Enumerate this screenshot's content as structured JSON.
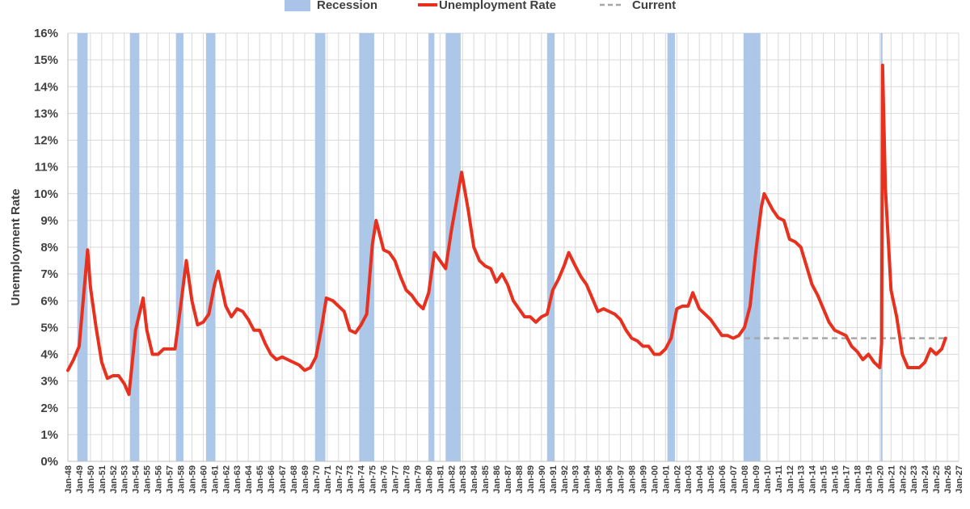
{
  "chart_data": {
    "type": "line",
    "title": "",
    "xlabel": "",
    "ylabel": "Unemployment Rate",
    "ylim": [
      0,
      16
    ],
    "y_ticks": [
      "0%",
      "1%",
      "2%",
      "3%",
      "4%",
      "5%",
      "6%",
      "7%",
      "8%",
      "9%",
      "10%",
      "11%",
      "12%",
      "13%",
      "14%",
      "15%",
      "16%"
    ],
    "x_ticks": [
      "Jan-48",
      "Jan-49",
      "Jan-50",
      "Jan-51",
      "Jan-52",
      "Jan-53",
      "Jan-54",
      "Jan-55",
      "Jan-56",
      "Jan-57",
      "Jan-58",
      "Jan-59",
      "Jan-60",
      "Jan-61",
      "Jan-62",
      "Jan-63",
      "Jan-64",
      "Jan-65",
      "Jan-66",
      "Jan-67",
      "Jan-68",
      "Jan-69",
      "Jan-70",
      "Jan-71",
      "Jan-72",
      "Jan-73",
      "Jan-74",
      "Jan-75",
      "Jan-76",
      "Jan-77",
      "Jan-78",
      "Jan-79",
      "Jan-80",
      "Jan-81",
      "Jan-82",
      "Jan-83",
      "Jan-84",
      "Jan-85",
      "Jan-86",
      "Jan-87",
      "Jan-88",
      "Jan-89",
      "Jan-90",
      "Jan-91",
      "Jan-92",
      "Jan-93",
      "Jan-94",
      "Jan-95",
      "Jan-96",
      "Jan-97",
      "Jan-98",
      "Jan-99",
      "Jan-00",
      "Jan-01",
      "Jan-02",
      "Jan-03",
      "Jan-04",
      "Jan-05",
      "Jan-06",
      "Jan-07",
      "Jan-08",
      "Jan-09",
      "Jan-10",
      "Jan-11",
      "Jan-12",
      "Jan-13",
      "Jan-14",
      "Jan-15",
      "Jan-16",
      "Jan-17",
      "Jan-18",
      "Jan-19",
      "Jan-20",
      "Jan-21",
      "Jan-22",
      "Jan-23",
      "Jan-24",
      "Jan-25",
      "Jan-26",
      "Jan-27"
    ],
    "grid": true,
    "legend": {
      "placement": "top",
      "entries": [
        {
          "label": "Recession",
          "symbol": "box",
          "color": "#a9c4e8"
        },
        {
          "label": "Unemployment Rate",
          "symbol": "line",
          "color": "#e8301e"
        },
        {
          "label": "Current",
          "symbol": "dashed-line",
          "color": "#a6a6a6"
        }
      ]
    },
    "recessions": [
      {
        "start": "Nov-48",
        "end": "Oct-49"
      },
      {
        "start": "Jul-53",
        "end": "May-54"
      },
      {
        "start": "Aug-57",
        "end": "Apr-58"
      },
      {
        "start": "Apr-60",
        "end": "Feb-61"
      },
      {
        "start": "Dec-69",
        "end": "Nov-70"
      },
      {
        "start": "Nov-73",
        "end": "Mar-75"
      },
      {
        "start": "Jan-80",
        "end": "Jul-80"
      },
      {
        "start": "Jul-81",
        "end": "Nov-82"
      },
      {
        "start": "Jul-90",
        "end": "Mar-91"
      },
      {
        "start": "Mar-01",
        "end": "Nov-01"
      },
      {
        "start": "Dec-07",
        "end": "Jun-09"
      },
      {
        "start": "Feb-20",
        "end": "Apr-20"
      }
    ],
    "current": {
      "value": 4.6,
      "start": "Jan-08",
      "end": "Nov-25",
      "color": "#a6a6a6"
    },
    "series": [
      {
        "name": "Unemployment Rate",
        "color": "#e8301e",
        "points": [
          [
            "Jan-48",
            3.4
          ],
          [
            "Jul-48",
            3.8
          ],
          [
            "Jan-49",
            4.3
          ],
          [
            "Jul-49",
            6.7
          ],
          [
            "Oct-49",
            7.9
          ],
          [
            "Jan-50",
            6.5
          ],
          [
            "Jul-50",
            5.0
          ],
          [
            "Jan-51",
            3.7
          ],
          [
            "Jul-51",
            3.1
          ],
          [
            "Jan-52",
            3.2
          ],
          [
            "Jul-52",
            3.2
          ],
          [
            "Jan-53",
            2.9
          ],
          [
            "Jun-53",
            2.5
          ],
          [
            "Jan-54",
            4.9
          ],
          [
            "Sep-54",
            6.1
          ],
          [
            "Jan-55",
            4.9
          ],
          [
            "Jul-55",
            4.0
          ],
          [
            "Jan-56",
            4.0
          ],
          [
            "Jul-56",
            4.2
          ],
          [
            "Jan-57",
            4.2
          ],
          [
            "Jul-57",
            4.2
          ],
          [
            "Jan-58",
            5.8
          ],
          [
            "Jul-58",
            7.5
          ],
          [
            "Jan-59",
            6.0
          ],
          [
            "Jul-59",
            5.1
          ],
          [
            "Jan-60",
            5.2
          ],
          [
            "Jul-60",
            5.5
          ],
          [
            "Jan-61",
            6.6
          ],
          [
            "May-61",
            7.1
          ],
          [
            "Jan-62",
            5.8
          ],
          [
            "Jul-62",
            5.4
          ],
          [
            "Jan-63",
            5.7
          ],
          [
            "Jul-63",
            5.6
          ],
          [
            "Jan-64",
            5.3
          ],
          [
            "Jul-64",
            4.9
          ],
          [
            "Jan-65",
            4.9
          ],
          [
            "Jul-65",
            4.4
          ],
          [
            "Jan-66",
            4.0
          ],
          [
            "Jul-66",
            3.8
          ],
          [
            "Jan-67",
            3.9
          ],
          [
            "Jul-67",
            3.8
          ],
          [
            "Jan-68",
            3.7
          ],
          [
            "Jul-68",
            3.6
          ],
          [
            "Jan-69",
            3.4
          ],
          [
            "Jul-69",
            3.5
          ],
          [
            "Jan-70",
            3.9
          ],
          [
            "Jul-70",
            5.0
          ],
          [
            "Dec-70",
            6.1
          ],
          [
            "Jul-71",
            6.0
          ],
          [
            "Jan-72",
            5.8
          ],
          [
            "Jul-72",
            5.6
          ],
          [
            "Jan-73",
            4.9
          ],
          [
            "Jul-73",
            4.8
          ],
          [
            "Jan-74",
            5.1
          ],
          [
            "Jul-74",
            5.5
          ],
          [
            "Jan-75",
            8.1
          ],
          [
            "May-75",
            9.0
          ],
          [
            "Jan-76",
            7.9
          ],
          [
            "Jul-76",
            7.8
          ],
          [
            "Jan-77",
            7.5
          ],
          [
            "Jul-77",
            6.9
          ],
          [
            "Jan-78",
            6.4
          ],
          [
            "Jul-78",
            6.2
          ],
          [
            "Jan-79",
            5.9
          ],
          [
            "Jul-79",
            5.7
          ],
          [
            "Jan-80",
            6.3
          ],
          [
            "Jul-80",
            7.8
          ],
          [
            "Jan-81",
            7.5
          ],
          [
            "Jul-81",
            7.2
          ],
          [
            "Jan-82",
            8.6
          ],
          [
            "Jul-82",
            9.8
          ],
          [
            "Dec-82",
            10.8
          ],
          [
            "Jul-83",
            9.4
          ],
          [
            "Jan-84",
            8.0
          ],
          [
            "Jul-84",
            7.5
          ],
          [
            "Jan-85",
            7.3
          ],
          [
            "Jul-85",
            7.2
          ],
          [
            "Jan-86",
            6.7
          ],
          [
            "Jul-86",
            7.0
          ],
          [
            "Jan-87",
            6.6
          ],
          [
            "Jul-87",
            6.0
          ],
          [
            "Jan-88",
            5.7
          ],
          [
            "Jul-88",
            5.4
          ],
          [
            "Jan-89",
            5.4
          ],
          [
            "Jul-89",
            5.2
          ],
          [
            "Jan-90",
            5.4
          ],
          [
            "Jul-90",
            5.5
          ],
          [
            "Jan-91",
            6.4
          ],
          [
            "Jul-91",
            6.8
          ],
          [
            "Jan-92",
            7.3
          ],
          [
            "Jun-92",
            7.8
          ],
          [
            "Jan-93",
            7.3
          ],
          [
            "Jul-93",
            6.9
          ],
          [
            "Jan-94",
            6.6
          ],
          [
            "Jul-94",
            6.1
          ],
          [
            "Jan-95",
            5.6
          ],
          [
            "Jul-95",
            5.7
          ],
          [
            "Jan-96",
            5.6
          ],
          [
            "Jul-96",
            5.5
          ],
          [
            "Jan-97",
            5.3
          ],
          [
            "Jul-97",
            4.9
          ],
          [
            "Jan-98",
            4.6
          ],
          [
            "Jul-98",
            4.5
          ],
          [
            "Jan-99",
            4.3
          ],
          [
            "Jul-99",
            4.3
          ],
          [
            "Jan-00",
            4.0
          ],
          [
            "Jul-00",
            4.0
          ],
          [
            "Jan-01",
            4.2
          ],
          [
            "Jul-01",
            4.6
          ],
          [
            "Jan-02",
            5.7
          ],
          [
            "Jul-02",
            5.8
          ],
          [
            "Jan-03",
            5.8
          ],
          [
            "Jun-03",
            6.3
          ],
          [
            "Jan-04",
            5.7
          ],
          [
            "Jul-04",
            5.5
          ],
          [
            "Jan-05",
            5.3
          ],
          [
            "Jul-05",
            5.0
          ],
          [
            "Jan-06",
            4.7
          ],
          [
            "Jul-06",
            4.7
          ],
          [
            "Jan-07",
            4.6
          ],
          [
            "Jul-07",
            4.7
          ],
          [
            "Jan-08",
            5.0
          ],
          [
            "Jul-08",
            5.8
          ],
          [
            "Jan-09",
            7.8
          ],
          [
            "Jul-09",
            9.5
          ],
          [
            "Oct-09",
            10.0
          ],
          [
            "Jul-10",
            9.4
          ],
          [
            "Jan-11",
            9.1
          ],
          [
            "Jul-11",
            9.0
          ],
          [
            "Jan-12",
            8.3
          ],
          [
            "Jul-12",
            8.2
          ],
          [
            "Jan-13",
            8.0
          ],
          [
            "Jul-13",
            7.3
          ],
          [
            "Jan-14",
            6.6
          ],
          [
            "Jul-14",
            6.2
          ],
          [
            "Jan-15",
            5.7
          ],
          [
            "Jul-15",
            5.2
          ],
          [
            "Jan-16",
            4.9
          ],
          [
            "Jul-16",
            4.8
          ],
          [
            "Jan-17",
            4.7
          ],
          [
            "Jul-17",
            4.3
          ],
          [
            "Jan-18",
            4.1
          ],
          [
            "Jul-18",
            3.8
          ],
          [
            "Jan-19",
            4.0
          ],
          [
            "Jul-19",
            3.7
          ],
          [
            "Jan-20",
            3.5
          ],
          [
            "Mar-20",
            4.4
          ],
          [
            "Apr-20",
            14.8
          ],
          [
            "Jul-20",
            10.2
          ],
          [
            "Jan-21",
            6.4
          ],
          [
            "Jul-21",
            5.4
          ],
          [
            "Jan-22",
            4.0
          ],
          [
            "Jul-22",
            3.5
          ],
          [
            "Jan-23",
            3.5
          ],
          [
            "Jul-23",
            3.5
          ],
          [
            "Jan-24",
            3.7
          ],
          [
            "Jul-24",
            4.2
          ],
          [
            "Jan-25",
            4.0
          ],
          [
            "Jul-25",
            4.2
          ],
          [
            "Nov-25",
            4.6
          ]
        ]
      }
    ]
  }
}
